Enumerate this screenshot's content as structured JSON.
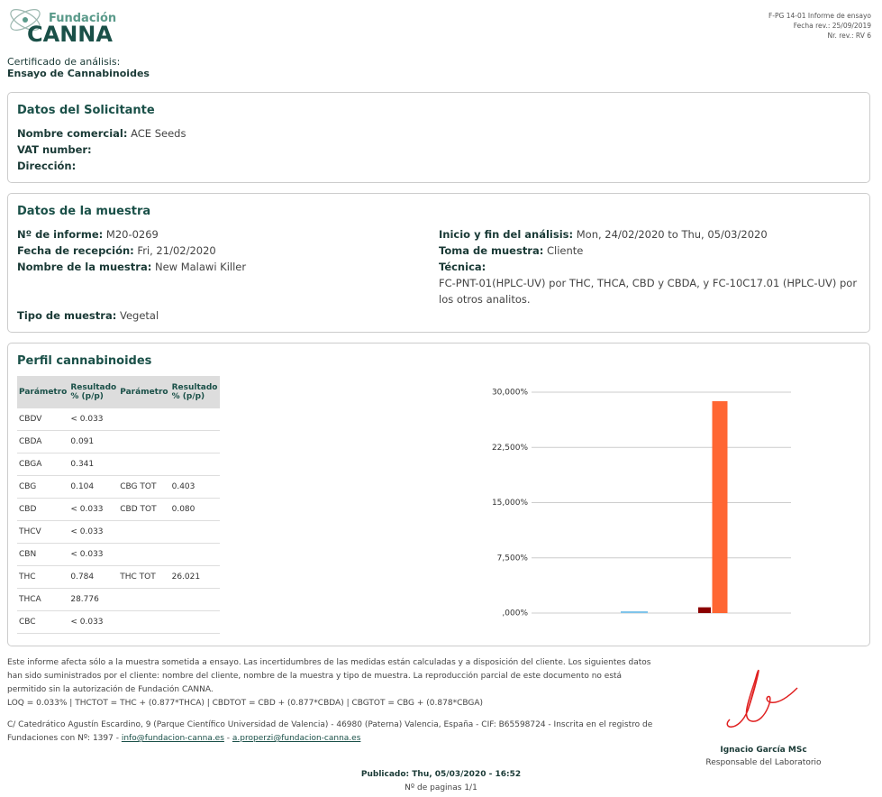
{
  "header": {
    "logo_top": "Fundación",
    "logo_main": "CANNA",
    "doc_code": "F-PG 14-01 Informe de ensayo",
    "rev_date": "Fecha rev.: 25/09/2019",
    "rev_number": "Nr. rev.: RV 6",
    "cert_label": "Certificado de análisis:",
    "cert_title": "Ensayo de Cannabinoides"
  },
  "applicant": {
    "title": "Datos del Solicitante",
    "fields": [
      {
        "label": "Nombre comercial:",
        "value": "ACE Seeds"
      },
      {
        "label": "VAT number:"
      },
      {
        "label": "Dirección:"
      }
    ]
  },
  "sample": {
    "title": "Datos de la muestra",
    "left": [
      {
        "label": "Nº de informe:",
        "value": "M20-0269"
      },
      {
        "label": "Fecha de recepción:",
        "value": "Fri, 21/02/2020"
      },
      {
        "label": "Nombre de la muestra:",
        "value": "New Malawi Killer"
      }
    ],
    "right": [
      {
        "label": "Inicio y fin del análisis:",
        "value": "Mon, 24/02/2020 to Thu, 05/03/2020"
      },
      {
        "label": "Toma de muestra:",
        "value": "Cliente"
      },
      {
        "label": "Técnica:"
      }
    ],
    "technique": "FC-PNT-01(HPLC-UV) por THC, THCA, CBD y CBDA, y FC-10C17.01 (HPLC-UV) por los otros analitos.",
    "type_label": "Tipo de muestra:",
    "type_value": "Vegetal"
  },
  "profile": {
    "title": "Perfil cannabinoides",
    "table": {
      "headers": [
        "Parámetro",
        "Resultado % (p/p)",
        "Parámetro",
        "Resultado % (p/p)"
      ],
      "rows": [
        [
          "CBDV",
          "< 0.033"
        ],
        [
          "CBDA",
          "0.091"
        ],
        [
          "CBGA",
          "0.341"
        ],
        [
          "CBG",
          "0.104",
          "CBG TOT",
          "0.403"
        ],
        [
          "CBD",
          "< 0.033",
          "CBD TOT",
          "0.080"
        ],
        [
          "THCV",
          "< 0.033"
        ],
        [
          "CBN",
          "< 0.033"
        ],
        [
          "THC",
          "0.784",
          "THC TOT",
          "26.021"
        ],
        [
          "THCA",
          "28.776"
        ],
        [
          "CBC",
          "< 0.033"
        ]
      ]
    }
  },
  "chart_data": {
    "type": "bar",
    "categories": [
      null
    ],
    "series": [
      {
        "color": "#7fc4ea",
        "values": [
          0.25
        ]
      },
      {
        "color": "#8b0000",
        "values": [
          0.784
        ]
      },
      {
        "color": "#ff6633",
        "values": [
          28.776
        ]
      }
    ],
    "ylim": [
      0,
      30
    ],
    "yticks": [
      {
        "value": 0,
        "label": ",000%"
      },
      {
        "value": 7.5,
        "label": "7,500%"
      },
      {
        "value": 15,
        "label": "15,000%"
      },
      {
        "value": 22.5,
        "label": "22,500%"
      },
      {
        "value": 30,
        "label": "30,000%"
      }
    ],
    "grid": true
  },
  "footer": {
    "disclaimer": "Este informe afecta sólo a la muestra sometida a ensayo. Las incertidumbres de las medidas están calculadas y a disposición del cliente. Los siguientes datos han sido suministrados por el cliente: nombre del cliente, nombre de la muestra y tipo de muestra. La reproducción parcial de este documento no está permitido sin la autorización de Fundación CANNA.",
    "formulas": "LOQ = 0.033% | THCTOT = THC + (0.877*THCA) | CBDTOT = CBD + (0.877*CBDA) | CBGTOT = CBG + (0.878*CBGA)",
    "address": "C/ Catedrático Agustín Escardino, 9 (Parque Científico Universidad de Valencia) - 46980 (Paterna) Valencia, España - CIF: B65598724 - Inscrita en el registro de Fundaciones con Nº: 1397 -",
    "email1": "info@fundacion-canna.es",
    "separator": "-",
    "email2": "a.properzi@fundacion-canna.es",
    "signer": "Ignacio García MSc",
    "signer_role": "Responsable del Laboratorio",
    "published": "Publicado: Thu, 05/03/2020 - 16:52",
    "pages": "Nº de paginas 1/1"
  }
}
